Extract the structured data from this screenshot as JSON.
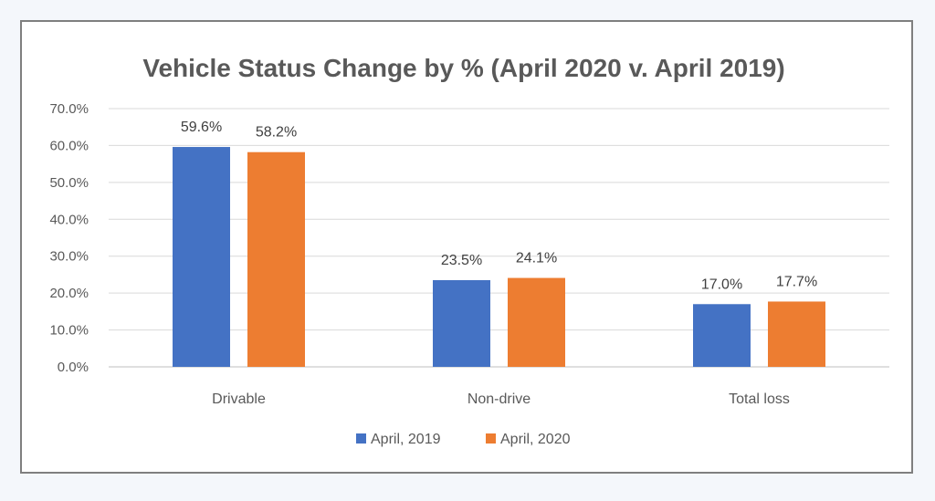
{
  "chart_data": {
    "type": "bar",
    "title": "Vehicle Status Change by % (April 2020 v. April 2019)",
    "xlabel": "",
    "ylabel": "",
    "categories": [
      "Drivable",
      "Non-drive",
      "Total loss"
    ],
    "series": [
      {
        "name": "April, 2019",
        "values": [
          59.6,
          23.5,
          17.0
        ],
        "color": "#4472c4"
      },
      {
        "name": "April, 2020",
        "values": [
          58.2,
          24.1,
          17.7
        ],
        "color": "#ed7d31"
      }
    ],
    "data_labels": [
      [
        "59.6%",
        "23.5%",
        "17.0%"
      ],
      [
        "58.2%",
        "24.1%",
        "17.7%"
      ]
    ],
    "yticks": [
      "0.0%",
      "10.0%",
      "20.0%",
      "30.0%",
      "40.0%",
      "50.0%",
      "60.0%",
      "70.0%"
    ],
    "ylim": [
      0,
      70
    ],
    "grid": true,
    "legend_position": "bottom"
  }
}
